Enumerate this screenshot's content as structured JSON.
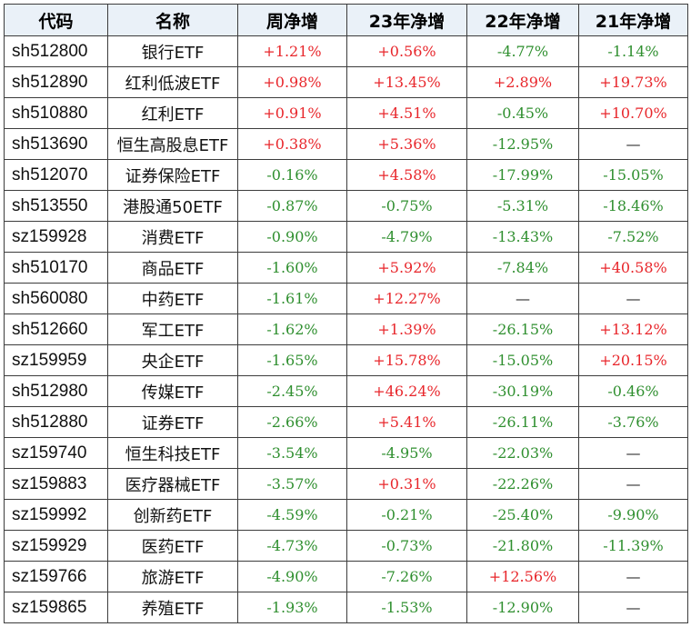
{
  "headers": [
    "代码",
    "名称",
    "周净增",
    "23年净增",
    "22年净增",
    "21年净增"
  ],
  "rows": [
    [
      "sh512800",
      "银行ETF",
      "+1.21%",
      "+0.56%",
      "-4.77%",
      "-1.14%"
    ],
    [
      "sh512890",
      "红利低波ETF",
      "+0.98%",
      "+13.45%",
      "+2.89%",
      "+19.73%"
    ],
    [
      "sh510880",
      "红利ETF",
      "+0.91%",
      "+4.51%",
      "-0.45%",
      "+10.70%"
    ],
    [
      "sh513690",
      "恒生高股息ETF",
      "+0.38%",
      "+5.36%",
      "-12.95%",
      "—"
    ],
    [
      "sh512070",
      "证券保险ETF",
      "-0.16%",
      "+4.58%",
      "-17.99%",
      "-15.05%"
    ],
    [
      "sh513550",
      "港股通50ETF",
      "-0.87%",
      "-0.75%",
      "-5.31%",
      "-18.46%"
    ],
    [
      "sz159928",
      "消费ETF",
      "-0.90%",
      "-4.79%",
      "-13.43%",
      "-7.52%"
    ],
    [
      "sh510170",
      "商品ETF",
      "-1.60%",
      "+5.92%",
      "-7.84%",
      "+40.58%"
    ],
    [
      "sh560080",
      "中药ETF",
      "-1.61%",
      "+12.27%",
      "—",
      "—"
    ],
    [
      "sh512660",
      "军工ETF",
      "-1.62%",
      "+1.39%",
      "-26.15%",
      "+13.12%"
    ],
    [
      "sz159959",
      "央企ETF",
      "-1.65%",
      "+15.78%",
      "-15.05%",
      "+20.15%"
    ],
    [
      "sh512980",
      "传媒ETF",
      "-2.45%",
      "+46.24%",
      "-30.19%",
      "-0.46%"
    ],
    [
      "sh512880",
      "证券ETF",
      "-2.66%",
      "+5.41%",
      "-26.11%",
      "-3.76%"
    ],
    [
      "sz159740",
      "恒生科技ETF",
      "-3.54%",
      "-4.95%",
      "-22.03%",
      "—"
    ],
    [
      "sz159883",
      "医疗器械ETF",
      "-3.57%",
      "+0.31%",
      "-22.26%",
      "—"
    ],
    [
      "sz159992",
      "创新药ETF",
      "-4.59%",
      "-0.21%",
      "-25.40%",
      "-9.90%"
    ],
    [
      "sz159929",
      "医药ETF",
      "-4.73%",
      "-0.73%",
      "-21.80%",
      "-11.39%"
    ],
    [
      "sz159766",
      "旅游ETF",
      "-4.90%",
      "-7.26%",
      "+12.56%",
      "—"
    ],
    [
      "sz159865",
      "养殖ETF",
      "-1.93%",
      "-1.53%",
      "-12.90%",
      "—"
    ]
  ],
  "colors": {
    "positive": "#e8262b",
    "negative": "#2f8f2f",
    "header_bg": "#eaf1f8",
    "grid": "#3c3c3c"
  }
}
